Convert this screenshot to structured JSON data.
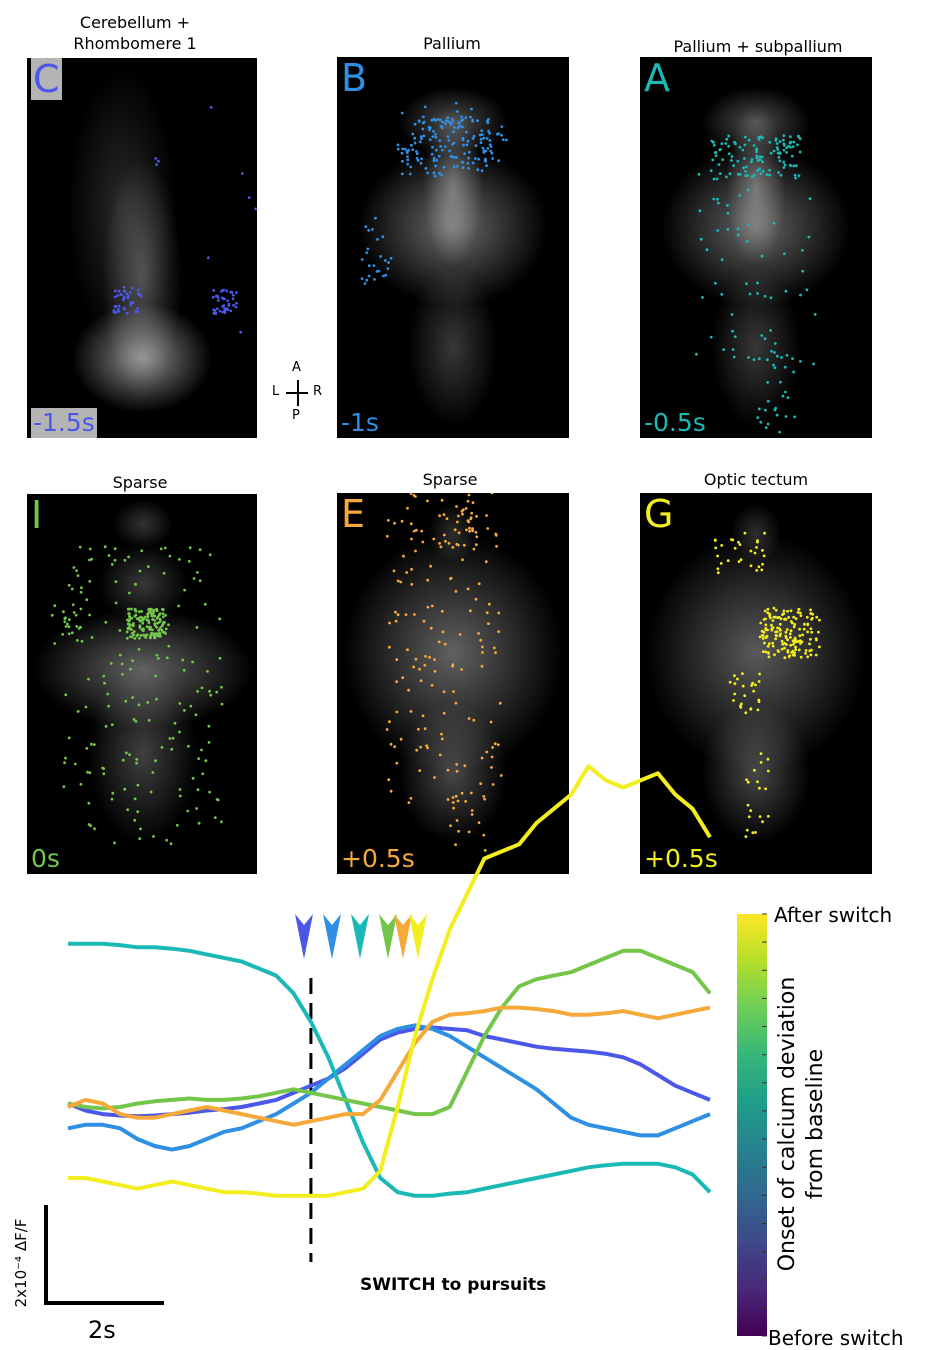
{
  "panels": [
    {
      "id": "C",
      "title": "Cerebellum +\nRhombomere 1",
      "time": "-1.5s",
      "color": "#4b57e8",
      "highlight": true
    },
    {
      "id": "B",
      "title": "Pallium",
      "time": "-1s",
      "color": "#2f8fe4",
      "highlight": false
    },
    {
      "id": "A",
      "title": "Pallium + subpallium",
      "time": "-0.5s",
      "color": "#1ab9b5",
      "highlight": false
    },
    {
      "id": "I",
      "title": "Sparse",
      "time": "0s",
      "color": "#74c64a",
      "highlight": false
    },
    {
      "id": "E",
      "title": "Sparse",
      "time": "+0.5s",
      "color": "#f5a93a",
      "highlight": false
    },
    {
      "id": "G",
      "title": "Optic tectum",
      "time": "+0.5s",
      "color": "#f3ee1f",
      "highlight": false
    }
  ],
  "compass": {
    "a": "A",
    "l": "L",
    "r": "R",
    "p": "P"
  },
  "chart_data": {
    "type": "line",
    "title": "",
    "xlabel": "",
    "ylabel": "",
    "annotation": "SWITCH to pursuits",
    "scale_bar": {
      "x_label": "2s",
      "y_label": "2x10⁻⁴ ΔF/F",
      "x_value": 2,
      "y_value": 0.0002
    },
    "x": [
      -7,
      -6.5,
      -6,
      -5.5,
      -5,
      -4.5,
      -4,
      -3.5,
      -3,
      -2.5,
      -2,
      -1.5,
      -1,
      -0.5,
      0,
      0.5,
      1,
      1.5,
      2,
      2.5,
      3,
      3.5,
      4,
      4.5,
      5,
      5.5,
      6,
      6.5,
      7,
      7.5,
      8,
      8.5,
      9,
      9.5,
      10,
      10.5,
      11,
      11.5
    ],
    "switch_x": 0,
    "series": [
      {
        "color": "#4b57e8",
        "values": [
          0.05,
          -0.05,
          -0.1,
          -0.12,
          -0.13,
          -0.12,
          -0.1,
          -0.08,
          -0.05,
          -0.03,
          0.0,
          0.05,
          0.1,
          0.2,
          0.3,
          0.4,
          0.55,
          0.75,
          0.95,
          1.05,
          1.1,
          1.12,
          1.1,
          1.08,
          1.0,
          0.95,
          0.9,
          0.85,
          0.82,
          0.8,
          0.78,
          0.75,
          0.7,
          0.6,
          0.45,
          0.3,
          0.2,
          0.1
        ]
      },
      {
        "color": "#2f8fe4",
        "values": [
          -0.3,
          -0.25,
          -0.25,
          -0.3,
          -0.45,
          -0.55,
          -0.6,
          -0.55,
          -0.45,
          -0.35,
          -0.3,
          -0.2,
          -0.1,
          0.05,
          0.2,
          0.4,
          0.6,
          0.8,
          1.0,
          1.1,
          1.15,
          1.1,
          1.0,
          0.85,
          0.7,
          0.55,
          0.4,
          0.25,
          0.05,
          -0.15,
          -0.25,
          -0.3,
          -0.35,
          -0.4,
          -0.4,
          -0.3,
          -0.2,
          -0.1
        ]
      },
      {
        "color": "#1ab9b5",
        "values": [
          2.3,
          2.3,
          2.3,
          2.28,
          2.25,
          2.25,
          2.23,
          2.2,
          2.15,
          2.1,
          2.05,
          1.95,
          1.85,
          1.6,
          1.2,
          0.7,
          0.1,
          -0.5,
          -1.0,
          -1.2,
          -1.25,
          -1.25,
          -1.22,
          -1.2,
          -1.15,
          -1.1,
          -1.05,
          -1.0,
          -0.95,
          -0.9,
          -0.85,
          -0.82,
          -0.8,
          -0.8,
          -0.8,
          -0.85,
          -0.95,
          -1.2
        ]
      },
      {
        "color": "#74c64a",
        "values": [
          0.05,
          0.0,
          -0.02,
          0.0,
          0.05,
          0.08,
          0.1,
          0.12,
          0.1,
          0.1,
          0.12,
          0.15,
          0.2,
          0.25,
          0.2,
          0.15,
          0.1,
          0.05,
          0.0,
          -0.05,
          -0.1,
          -0.1,
          0.0,
          0.5,
          1.0,
          1.4,
          1.7,
          1.8,
          1.85,
          1.9,
          2.0,
          2.1,
          2.2,
          2.2,
          2.1,
          2.0,
          1.9,
          1.6
        ]
      },
      {
        "color": "#f5a93a",
        "values": [
          0.0,
          0.1,
          0.05,
          -0.1,
          -0.15,
          -0.15,
          -0.1,
          -0.05,
          0.0,
          -0.05,
          -0.1,
          -0.15,
          -0.2,
          -0.25,
          -0.2,
          -0.15,
          -0.1,
          -0.1,
          0.1,
          0.5,
          0.9,
          1.2,
          1.3,
          1.32,
          1.35,
          1.4,
          1.4,
          1.38,
          1.35,
          1.3,
          1.3,
          1.32,
          1.35,
          1.3,
          1.25,
          1.3,
          1.35,
          1.4
        ]
      },
      {
        "color": "#f3ee1f",
        "values": [
          -1.0,
          -1.0,
          -1.05,
          -1.1,
          -1.15,
          -1.1,
          -1.05,
          -1.1,
          -1.15,
          -1.2,
          -1.2,
          -1.22,
          -1.25,
          -1.25,
          -1.25,
          -1.25,
          -1.2,
          -1.15,
          -0.9,
          0.0,
          1.0,
          1.8,
          2.5,
          3.0,
          3.5,
          3.6,
          3.7,
          4.0,
          4.2,
          4.4,
          4.8,
          4.6,
          4.5,
          4.6,
          4.7,
          4.4,
          4.2,
          3.8
        ]
      }
    ],
    "onset_markers": [
      {
        "color": "#4b57e8",
        "x": -1.5
      },
      {
        "color": "#2f8fe4",
        "x": -1.0
      },
      {
        "color": "#1ab9b5",
        "x": -0.5
      },
      {
        "color": "#74c64a",
        "x": 0.0
      },
      {
        "color": "#f5a93a",
        "x": 0.4
      },
      {
        "color": "#f3ee1f",
        "x": 0.6
      }
    ],
    "colorbar": {
      "top_label": "After switch",
      "bottom_label": "Before switch",
      "title": "Onset of calcium deviation\nfrom baseline",
      "colors": [
        "#fde725",
        "#b5de2b",
        "#6ece58",
        "#35b779",
        "#1f9e89",
        "#26828e",
        "#31688e",
        "#3e4989",
        "#482878",
        "#440154"
      ]
    }
  }
}
